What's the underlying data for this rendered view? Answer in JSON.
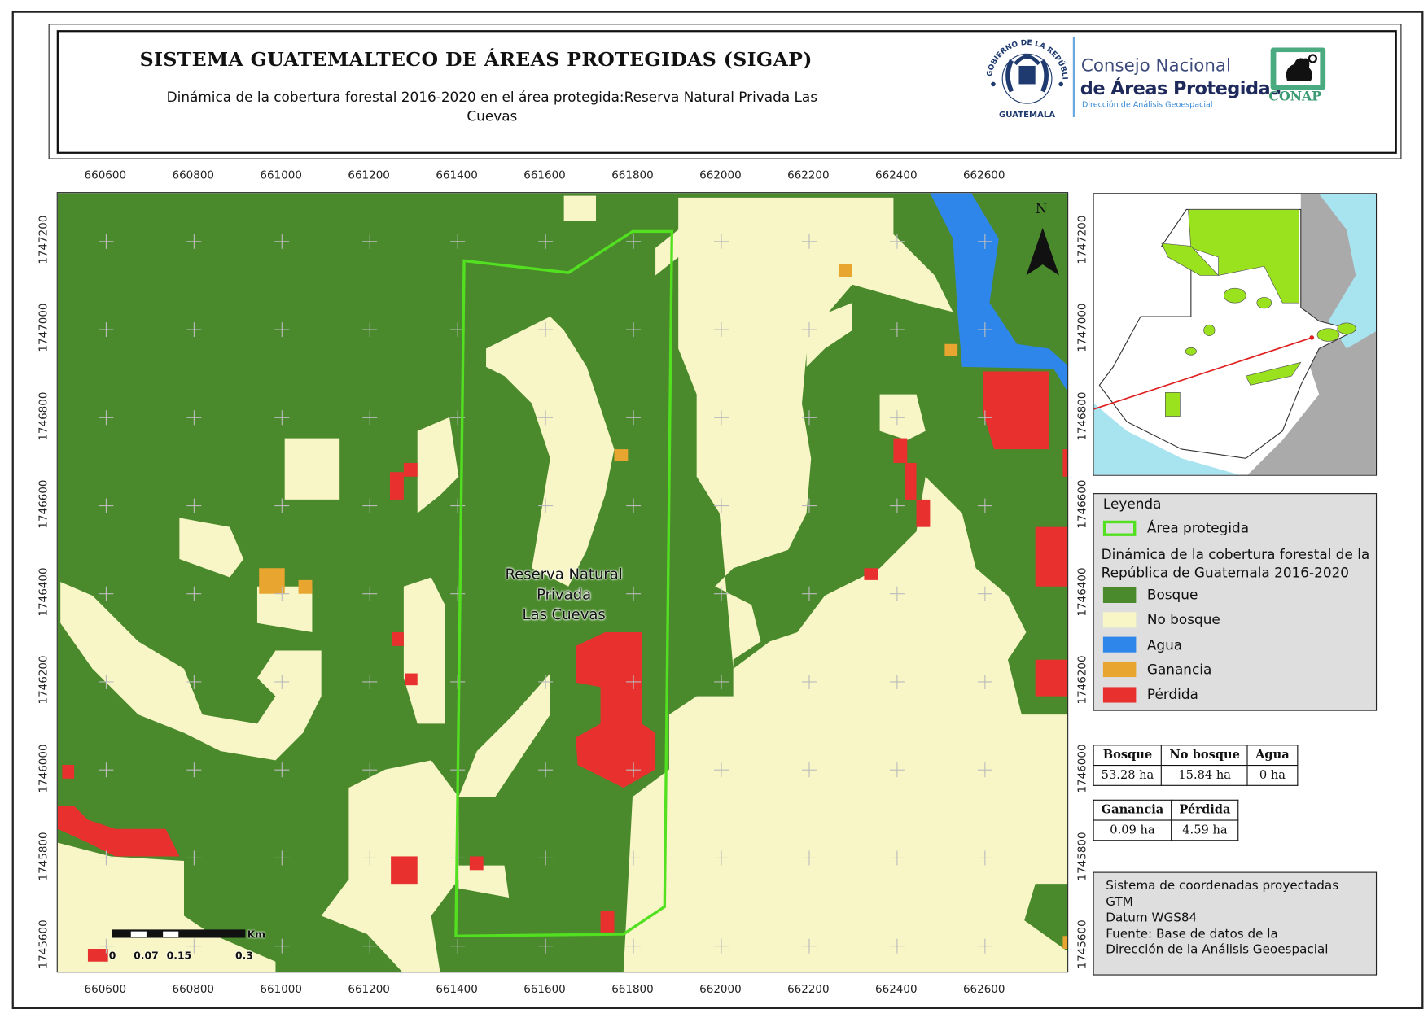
{
  "header": {
    "title": "SISTEMA GUATEMALTECO DE ÁREAS PROTEGIDAS  (SIGAP)",
    "subtitle": "Dinámica de la cobertura forestal 2016-2020 en el área protegida:Reserva Natural Privada Las Cuevas",
    "logo_gov": "GOBIERNO DE LA REPÚBLICA GUATEMALA",
    "logo_conap_line1": "Consejo Nacional",
    "logo_conap_line2": "de Áreas Protegidas",
    "logo_conap_line3": "Dirección de Análisis Geoespacial",
    "logo_conap_badge": "CONAP"
  },
  "axes": {
    "x_ticks": [
      "660600",
      "660800",
      "661000",
      "661200",
      "661400",
      "661600",
      "661800",
      "662000",
      "662200",
      "662400",
      "662600"
    ],
    "y_ticks": [
      "1747200",
      "1747000",
      "1746800",
      "1746600",
      "1746400",
      "1746200",
      "1746000",
      "1745800",
      "1745600"
    ]
  },
  "map": {
    "area_label": [
      "Reserva Natural",
      "Privada",
      "Las Cuevas"
    ],
    "north_label": "N",
    "scale_unit": "Km",
    "scale_labels": [
      "0",
      "0.07",
      "0.15",
      "0.3"
    ]
  },
  "legend": {
    "title": "Leyenda",
    "protected_area": "Área protegida",
    "section_title": "Dinámica de la cobertura forestal de la República de Guatemala 2016-2020",
    "items": [
      {
        "label": "Bosque",
        "color": "#4a8a2c"
      },
      {
        "label": "No bosque",
        "color": "#f8f6c6"
      },
      {
        "label": "Agua",
        "color": "#2f86ea"
      },
      {
        "label": "Ganancia",
        "color": "#e8a530"
      },
      {
        "label": "Pérdida",
        "color": "#e8302e"
      }
    ],
    "outline_color": "#52e020"
  },
  "stats": {
    "table1": {
      "headers": [
        "Bosque",
        "No bosque",
        "Agua"
      ],
      "values": [
        "53.28 ha",
        "15.84 ha",
        "0 ha"
      ]
    },
    "table2": {
      "headers": [
        "Ganancia",
        "Pérdida"
      ],
      "values": [
        "0.09 ha",
        "4.59 ha"
      ]
    }
  },
  "info": {
    "lines": [
      "Sistema de coordenadas proyectadas",
      "GTM",
      "Datum WGS84",
      "Fuente: Base de datos de la",
      "Dirección de la Análisis Geoespacial"
    ]
  }
}
